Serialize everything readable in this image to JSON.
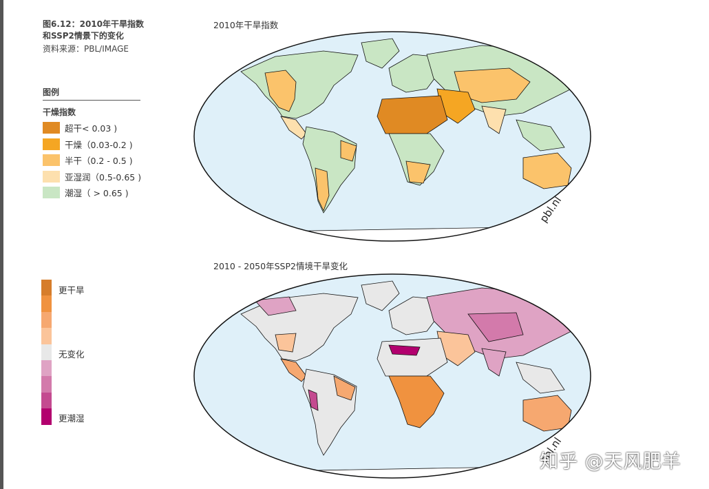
{
  "figure": {
    "title_line1": "图6.12：2010年干旱指数",
    "title_line2": "和SSP2情景下的变化",
    "source": "资料来源：PBL/IMAGE"
  },
  "legend": {
    "heading": "图例",
    "subheading": "干燥指数",
    "items": [
      {
        "label": "超干< 0.03 )",
        "color": "#e08a23"
      },
      {
        "label": "干燥（0.03-0.2 )",
        "color": "#f5a623"
      },
      {
        "label": "半干（0.2 - 0.5 )",
        "color": "#fbc36b"
      },
      {
        "label": "亚湿润（0.5-0.65 )",
        "color": "#fde0ae"
      },
      {
        "label": "潮湿（ > 0.65 )",
        "color": "#c9e6c4"
      }
    ]
  },
  "change_legend": {
    "drier": "更干旱",
    "nochange": "无变化",
    "wetter": "更潮湿",
    "colors": [
      "#d67d2b",
      "#f0923f",
      "#f6a870",
      "#fbc49a",
      "#e8e8e8",
      "#dfa3c4",
      "#d37aab",
      "#c44a90",
      "#b2006e"
    ]
  },
  "map1": {
    "title": "2010年干旱指数",
    "credit": "pbl.nl"
  },
  "map2": {
    "title": "2010 - 2050年SSP2情境干旱变化",
    "credit": "pbl.nl"
  },
  "colors": {
    "ocean": "#dff0f9",
    "outline": "#111111"
  },
  "watermark": "知乎 @天风肥羊"
}
